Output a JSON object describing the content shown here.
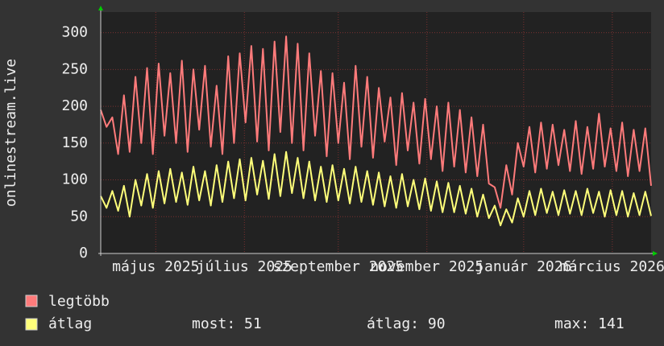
{
  "chart_data": {
    "type": "line",
    "y_label": "onlinestream.live",
    "ylim": [
      0,
      328
    ],
    "yticks": [
      0,
      50,
      100,
      150,
      200,
      250,
      300
    ],
    "xlim": [
      0,
      95
    ],
    "xticks": [
      {
        "value": 9.5,
        "label": "május 2025"
      },
      {
        "value": 24.8,
        "label": "július 2025"
      },
      {
        "value": 41,
        "label": "szeptember 2025"
      },
      {
        "value": 56.3,
        "label": "november 2025"
      },
      {
        "value": 73,
        "label": "január 2026"
      },
      {
        "value": 88.3,
        "label": "március 2026"
      }
    ],
    "grid": true,
    "series": [
      {
        "name": "legtöbb",
        "color": "#ff7b7b",
        "values": [
          195,
          172,
          185,
          135,
          215,
          138,
          240,
          150,
          252,
          135,
          258,
          160,
          245,
          150,
          262,
          138,
          250,
          168,
          255,
          145,
          228,
          135,
          268,
          150,
          272,
          178,
          282,
          152,
          278,
          140,
          288,
          165,
          295,
          150,
          285,
          140,
          272,
          160,
          248,
          132,
          245,
          150,
          232,
          128,
          255,
          145,
          240,
          130,
          225,
          152,
          212,
          120,
          218,
          140,
          205,
          122,
          210,
          128,
          200,
          112,
          205,
          118,
          195,
          110,
          185,
          105,
          175,
          95,
          90,
          62,
          120,
          80,
          150,
          118,
          172,
          110,
          178,
          115,
          175,
          120,
          168,
          112,
          180,
          108,
          172,
          115,
          190,
          118,
          170,
          112,
          178,
          105,
          168,
          112,
          170,
          92
        ]
      },
      {
        "name": "átlag",
        "color": "#ffff7a",
        "values": [
          78,
          62,
          85,
          58,
          92,
          50,
          100,
          65,
          108,
          62,
          112,
          68,
          115,
          70,
          110,
          66,
          118,
          72,
          112,
          65,
          120,
          70,
          125,
          75,
          128,
          72,
          130,
          80,
          126,
          74,
          135,
          78,
          138,
          82,
          130,
          75,
          125,
          72,
          118,
          70,
          120,
          72,
          115,
          68,
          118,
          70,
          112,
          66,
          110,
          64,
          105,
          62,
          108,
          64,
          100,
          60,
          102,
          58,
          98,
          56,
          96,
          56,
          92,
          54,
          88,
          50,
          80,
          48,
          65,
          38,
          60,
          42,
          75,
          50,
          85,
          52,
          88,
          55,
          84,
          52,
          86,
          54,
          85,
          52,
          88,
          55,
          84,
          50,
          86,
          52,
          85,
          50,
          82,
          52,
          84,
          51
        ]
      }
    ],
    "stats": [
      "most: 51",
      "átlag: 90",
      "max: 141"
    ]
  }
}
